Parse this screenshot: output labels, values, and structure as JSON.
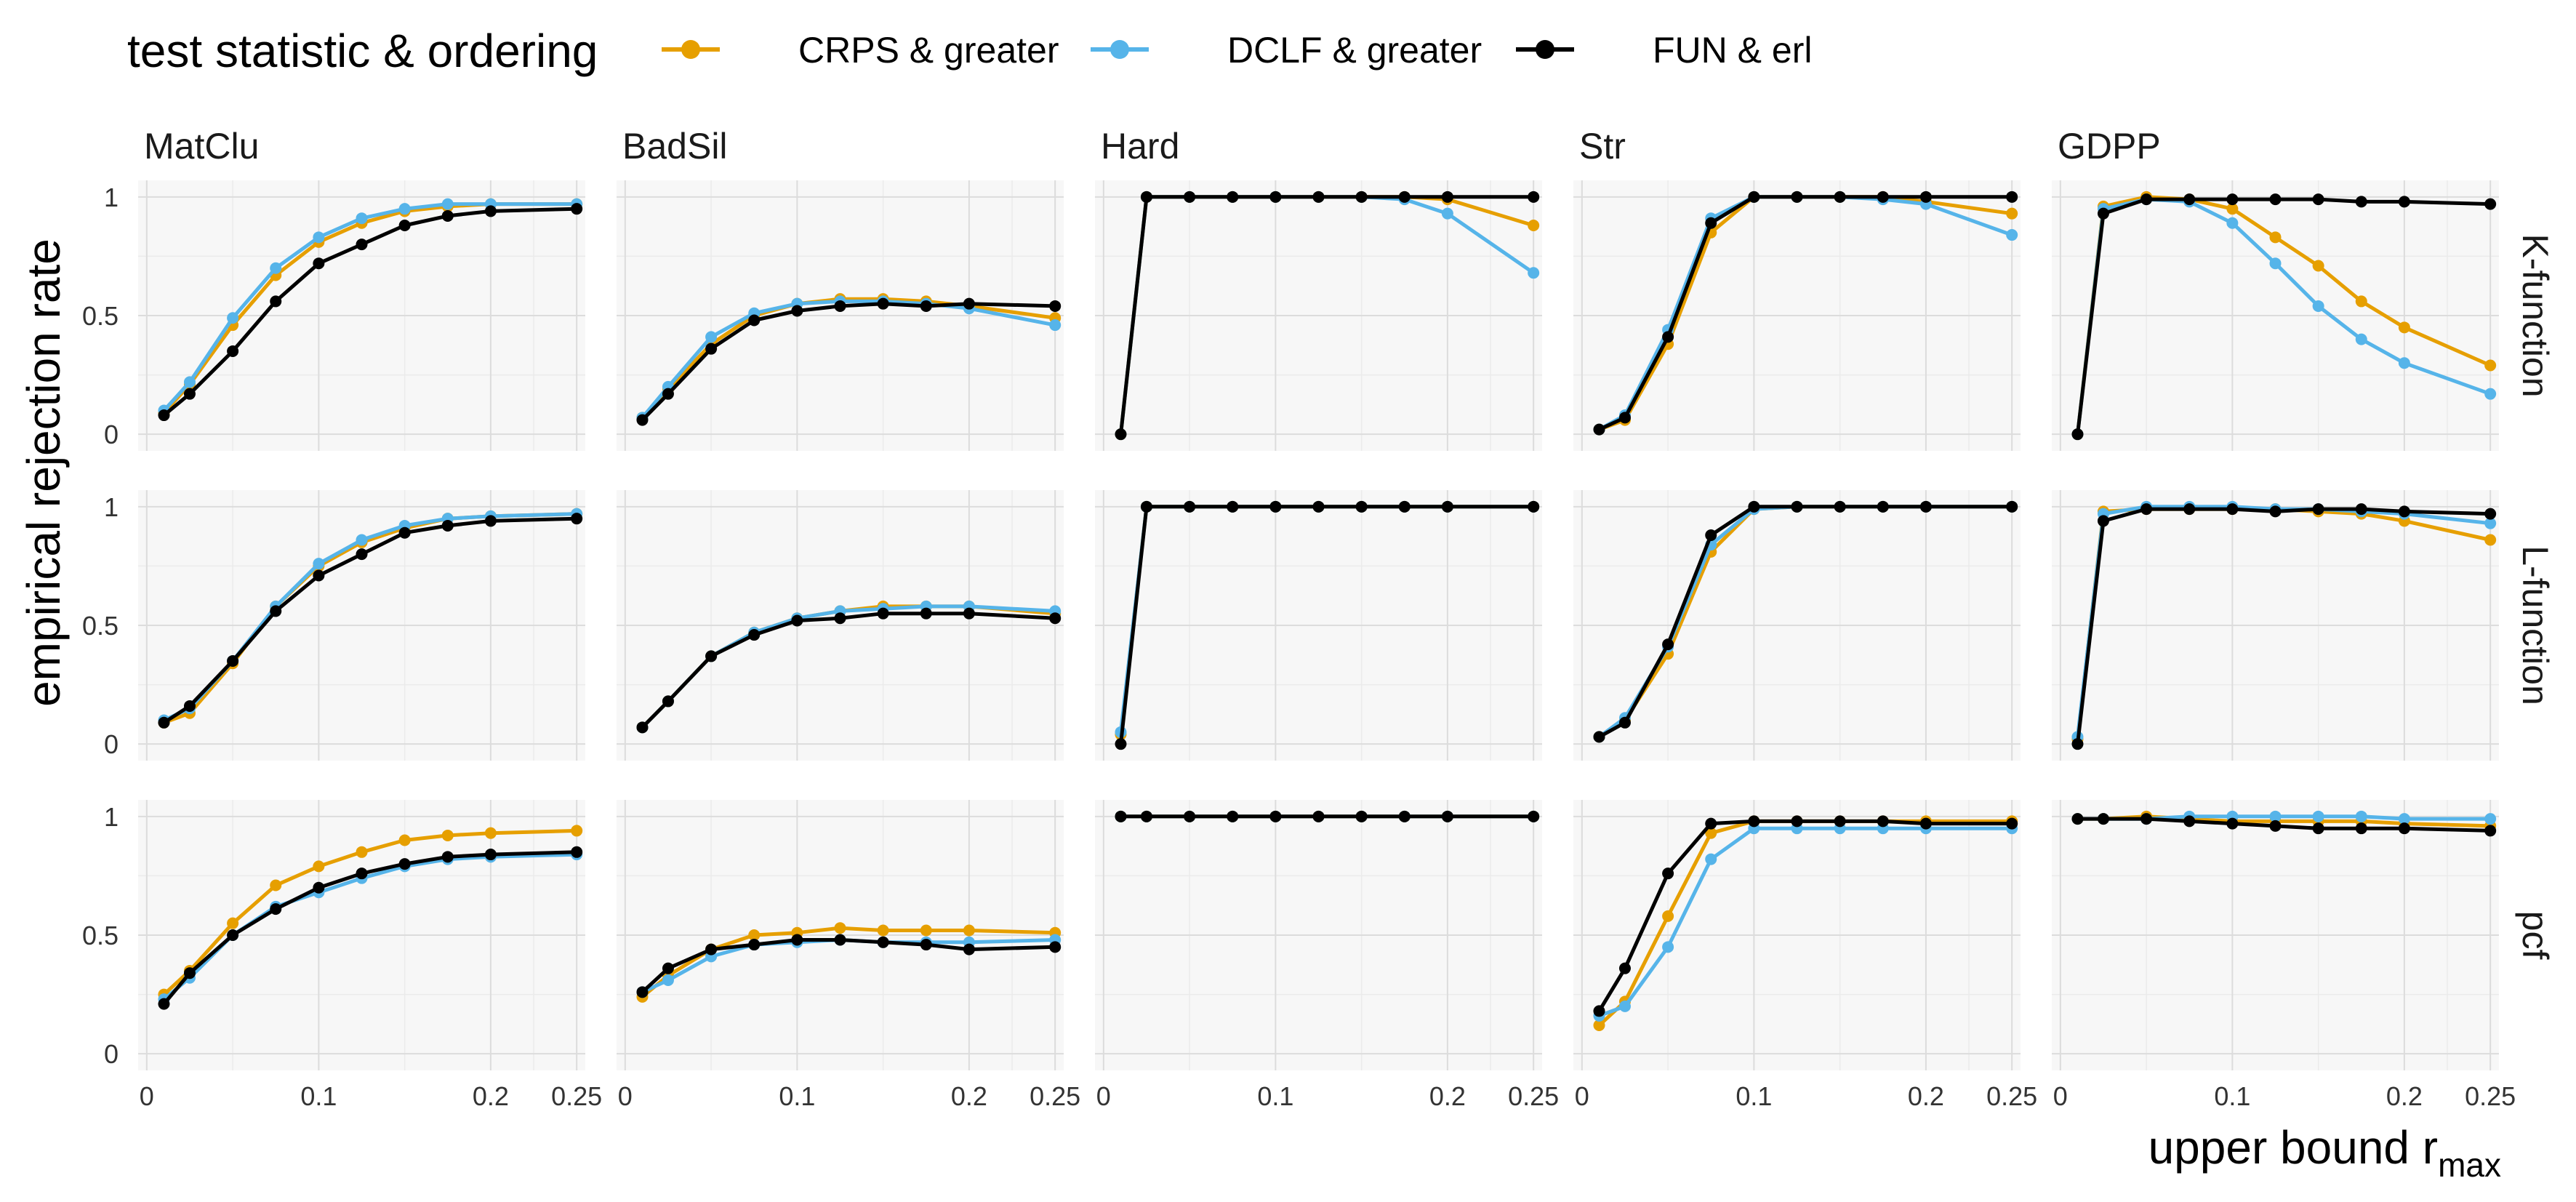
{
  "chart_data": {
    "type": "line",
    "legend": {
      "title": "test statistic & ordering",
      "position": "top",
      "entries": [
        {
          "label": "CRPS & greater",
          "color": "#E69F00"
        },
        {
          "label": "DCLF & greater",
          "color": "#56B4E9"
        },
        {
          "label": "FUN & erl",
          "color": "#000000"
        }
      ]
    },
    "xlabel": {
      "main": "upper bound r",
      "sub": "max"
    },
    "ylabel": "empirical rejection rate",
    "xlim": [
      0,
      0.25
    ],
    "ylim": [
      0,
      1
    ],
    "x_ticks": [
      0,
      0.1,
      0.2,
      0.25
    ],
    "x_tick_labels": [
      "0",
      "0.1",
      "0.2",
      "0.25"
    ],
    "y_ticks": [
      0,
      0.5,
      1
    ],
    "y_tick_labels": [
      "0",
      "0.5",
      "1"
    ],
    "grid": true,
    "x": [
      0.01,
      0.025,
      0.05,
      0.075,
      0.1,
      0.125,
      0.15,
      0.175,
      0.2,
      0.25
    ],
    "columns": [
      "MatClu",
      "BadSil",
      "Hard",
      "Str",
      "GDPP"
    ],
    "rows": [
      "K-function",
      "L-function",
      "pcf"
    ],
    "series": [
      "CRPS & greater",
      "DCLF & greater",
      "FUN & erl"
    ],
    "panels": [
      [
        {
          "CRPS & greater": [
            0.09,
            0.21,
            0.46,
            0.67,
            0.81,
            0.89,
            0.94,
            0.96,
            0.97,
            0.97
          ],
          "DCLF & greater": [
            0.1,
            0.22,
            0.49,
            0.7,
            0.83,
            0.91,
            0.95,
            0.97,
            0.97,
            0.97
          ],
          "FUN & erl": [
            0.08,
            0.17,
            0.35,
            0.56,
            0.72,
            0.8,
            0.88,
            0.92,
            0.94,
            0.95
          ]
        },
        {
          "CRPS & greater": [
            0.07,
            0.19,
            0.38,
            0.5,
            0.55,
            0.57,
            0.57,
            0.56,
            0.54,
            0.49
          ],
          "DCLF & greater": [
            0.07,
            0.2,
            0.41,
            0.51,
            0.55,
            0.56,
            0.56,
            0.55,
            0.53,
            0.46
          ],
          "FUN & erl": [
            0.06,
            0.17,
            0.36,
            0.48,
            0.52,
            0.54,
            0.55,
            0.54,
            0.55,
            0.54
          ]
        },
        {
          "CRPS & greater": [
            0.0,
            1.0,
            1.0,
            1.0,
            1.0,
            1.0,
            1.0,
            1.0,
            0.99,
            0.88
          ],
          "DCLF & greater": [
            0.0,
            1.0,
            1.0,
            1.0,
            1.0,
            1.0,
            1.0,
            0.99,
            0.93,
            0.68
          ],
          "FUN & erl": [
            0.0,
            1.0,
            1.0,
            1.0,
            1.0,
            1.0,
            1.0,
            1.0,
            1.0,
            1.0
          ]
        },
        {
          "CRPS & greater": [
            0.02,
            0.06,
            0.38,
            0.85,
            1.0,
            1.0,
            1.0,
            1.0,
            0.98,
            0.93
          ],
          "DCLF & greater": [
            0.02,
            0.08,
            0.44,
            0.91,
            1.0,
            1.0,
            1.0,
            0.99,
            0.97,
            0.84
          ],
          "FUN & erl": [
            0.02,
            0.07,
            0.41,
            0.89,
            1.0,
            1.0,
            1.0,
            1.0,
            1.0,
            1.0
          ]
        },
        {
          "CRPS & greater": [
            0.0,
            0.96,
            1.0,
            0.99,
            0.95,
            0.83,
            0.71,
            0.56,
            0.45,
            0.29
          ],
          "DCLF & greater": [
            0.0,
            0.95,
            0.99,
            0.98,
            0.89,
            0.72,
            0.54,
            0.4,
            0.3,
            0.17
          ],
          "FUN & erl": [
            0.0,
            0.93,
            0.99,
            0.99,
            0.99,
            0.99,
            0.99,
            0.98,
            0.98,
            0.97
          ]
        }
      ],
      [
        {
          "CRPS & greater": [
            0.09,
            0.13,
            0.34,
            0.58,
            0.75,
            0.85,
            0.91,
            0.95,
            0.96,
            0.97
          ],
          "DCLF & greater": [
            0.1,
            0.15,
            0.35,
            0.58,
            0.76,
            0.86,
            0.92,
            0.95,
            0.96,
            0.97
          ],
          "FUN & erl": [
            0.09,
            0.16,
            0.35,
            0.56,
            0.71,
            0.8,
            0.89,
            0.92,
            0.94,
            0.95
          ]
        },
        {
          "CRPS & greater": [
            0.07,
            0.18,
            0.37,
            0.47,
            0.53,
            0.56,
            0.58,
            0.58,
            0.58,
            0.55
          ],
          "DCLF & greater": [
            0.07,
            0.18,
            0.37,
            0.47,
            0.53,
            0.56,
            0.57,
            0.58,
            0.58,
            0.56
          ],
          "FUN & erl": [
            0.07,
            0.18,
            0.37,
            0.46,
            0.52,
            0.53,
            0.55,
            0.55,
            0.55,
            0.53
          ]
        },
        {
          "CRPS & greater": [
            0.04,
            1.0,
            1.0,
            1.0,
            1.0,
            1.0,
            1.0,
            1.0,
            1.0,
            1.0
          ],
          "DCLF & greater": [
            0.05,
            1.0,
            1.0,
            1.0,
            1.0,
            1.0,
            1.0,
            1.0,
            1.0,
            1.0
          ],
          "FUN & erl": [
            0.0,
            1.0,
            1.0,
            1.0,
            1.0,
            1.0,
            1.0,
            1.0,
            1.0,
            1.0
          ]
        },
        {
          "CRPS & greater": [
            0.03,
            0.1,
            0.38,
            0.81,
            0.99,
            1.0,
            1.0,
            1.0,
            1.0,
            1.0
          ],
          "DCLF & greater": [
            0.03,
            0.11,
            0.41,
            0.84,
            0.99,
            1.0,
            1.0,
            1.0,
            1.0,
            1.0
          ],
          "FUN & erl": [
            0.03,
            0.09,
            0.42,
            0.88,
            1.0,
            1.0,
            1.0,
            1.0,
            1.0,
            1.0
          ]
        },
        {
          "CRPS & greater": [
            0.02,
            0.98,
            0.99,
            0.99,
            0.99,
            0.99,
            0.98,
            0.97,
            0.94,
            0.86
          ],
          "DCLF & greater": [
            0.03,
            0.97,
            1.0,
            1.0,
            1.0,
            0.99,
            0.99,
            0.98,
            0.97,
            0.93
          ],
          "FUN & erl": [
            0.0,
            0.94,
            0.99,
            0.99,
            0.99,
            0.98,
            0.99,
            0.99,
            0.98,
            0.97
          ]
        }
      ],
      [
        {
          "CRPS & greater": [
            0.25,
            0.35,
            0.55,
            0.71,
            0.79,
            0.85,
            0.9,
            0.92,
            0.93,
            0.94
          ],
          "DCLF & greater": [
            0.23,
            0.32,
            0.5,
            0.62,
            0.68,
            0.74,
            0.79,
            0.82,
            0.83,
            0.84
          ],
          "FUN & erl": [
            0.21,
            0.34,
            0.5,
            0.61,
            0.7,
            0.76,
            0.8,
            0.83,
            0.84,
            0.85
          ]
        },
        {
          "CRPS & greater": [
            0.24,
            0.33,
            0.44,
            0.5,
            0.51,
            0.53,
            0.52,
            0.52,
            0.52,
            0.51
          ],
          "DCLF & greater": [
            0.26,
            0.31,
            0.41,
            0.46,
            0.47,
            0.48,
            0.47,
            0.47,
            0.47,
            0.48
          ],
          "FUN & erl": [
            0.26,
            0.36,
            0.44,
            0.46,
            0.48,
            0.48,
            0.47,
            0.46,
            0.44,
            0.45
          ]
        },
        {
          "CRPS & greater": [
            1.0,
            1.0,
            1.0,
            1.0,
            1.0,
            1.0,
            1.0,
            1.0,
            1.0,
            1.0
          ],
          "DCLF & greater": [
            1.0,
            1.0,
            1.0,
            1.0,
            1.0,
            1.0,
            1.0,
            1.0,
            1.0,
            1.0
          ],
          "FUN & erl": [
            1.0,
            1.0,
            1.0,
            1.0,
            1.0,
            1.0,
            1.0,
            1.0,
            1.0,
            1.0
          ]
        },
        {
          "CRPS & greater": [
            0.12,
            0.22,
            0.58,
            0.93,
            0.98,
            0.98,
            0.98,
            0.98,
            0.98,
            0.98
          ],
          "DCLF & greater": [
            0.16,
            0.2,
            0.45,
            0.82,
            0.95,
            0.95,
            0.95,
            0.95,
            0.95,
            0.95
          ],
          "FUN & erl": [
            0.18,
            0.36,
            0.76,
            0.97,
            0.98,
            0.98,
            0.98,
            0.98,
            0.97,
            0.97
          ]
        },
        {
          "CRPS & greater": [
            0.99,
            0.99,
            1.0,
            0.99,
            0.98,
            0.98,
            0.98,
            0.98,
            0.97,
            0.96
          ],
          "DCLF & greater": [
            0.99,
            0.99,
            0.99,
            1.0,
            1.0,
            1.0,
            1.0,
            1.0,
            0.99,
            0.99
          ],
          "FUN & erl": [
            0.99,
            0.99,
            0.99,
            0.98,
            0.97,
            0.96,
            0.95,
            0.95,
            0.95,
            0.94
          ]
        }
      ]
    ]
  }
}
